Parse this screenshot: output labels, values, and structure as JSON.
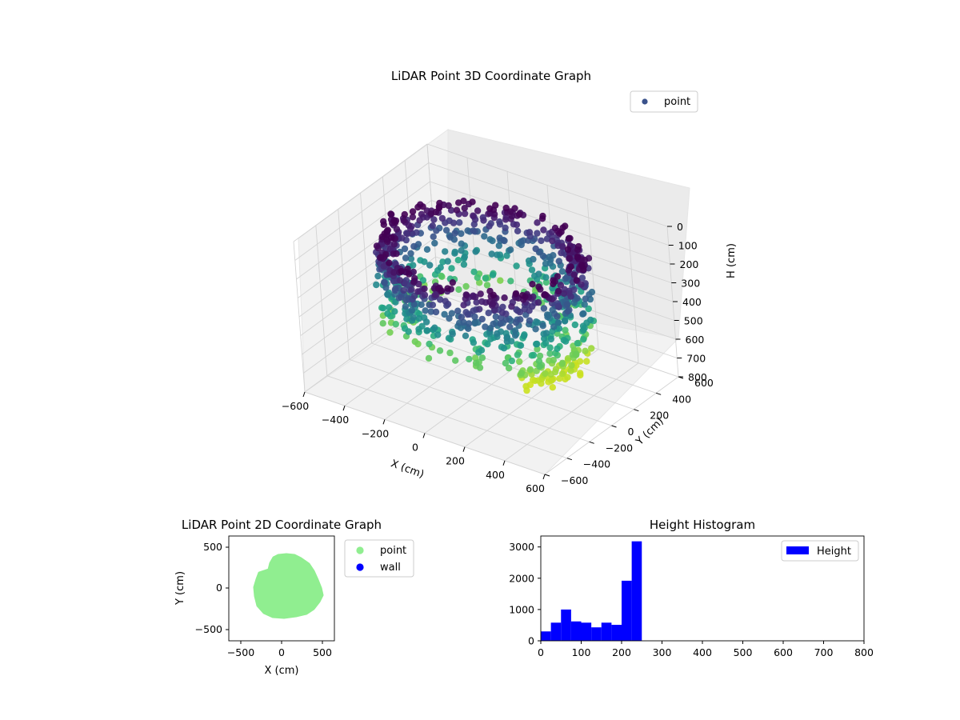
{
  "chart_data": [
    {
      "type": "scatter3d",
      "title": "LiDAR Point 3D Coordinate Graph",
      "xlabel": "X (cm)",
      "ylabel": "Y (cm)",
      "zlabel": "H (cm)",
      "xlim": [
        -600,
        600
      ],
      "ylim": [
        -600,
        600
      ],
      "zlim": [
        800,
        0
      ],
      "x_ticks": [
        "−600",
        "−400",
        "−200",
        "0",
        "200",
        "400",
        "600"
      ],
      "y_ticks": [
        "−600",
        "−400",
        "−200",
        "0",
        "200",
        "400",
        "600"
      ],
      "z_ticks": [
        "0",
        "100",
        "200",
        "300",
        "400",
        "500",
        "600",
        "700",
        "800"
      ],
      "legend": [
        {
          "label": "point",
          "color": "#3b528b"
        }
      ],
      "legend_position": "top-right",
      "colormap": "viridis",
      "grid": true,
      "data_description": "Ring-shaped point cloud, radius about 300–480 cm, heights about 80–500 cm colored by height (viridis)"
    },
    {
      "type": "scatter",
      "title": "LiDAR Point 2D Coordinate Graph",
      "xlabel": "X (cm)",
      "ylabel": "Y (cm)",
      "xlim": [
        -650,
        650
      ],
      "ylim": [
        -650,
        650
      ],
      "x_ticks": [
        "−500",
        "0",
        "500"
      ],
      "y_ticks": [
        "500",
        "0",
        "−500"
      ],
      "series": [
        {
          "name": "point",
          "color": "#90ee90"
        },
        {
          "name": "wall",
          "color": "#0000ff"
        }
      ],
      "legend_position": "outside-right"
    },
    {
      "type": "bar",
      "title": "Height Histogram",
      "xlabel": "",
      "ylabel": "",
      "xlim": [
        0,
        800
      ],
      "ylim": [
        0,
        3350
      ],
      "x_ticks": [
        "0",
        "100",
        "200",
        "300",
        "400",
        "500",
        "600",
        "700",
        "800"
      ],
      "y_ticks": [
        "0",
        "1000",
        "2000",
        "3000"
      ],
      "bin_width": 25,
      "bins": [
        {
          "x": 0,
          "value": 300
        },
        {
          "x": 25,
          "value": 580
        },
        {
          "x": 50,
          "value": 1000
        },
        {
          "x": 75,
          "value": 620
        },
        {
          "x": 100,
          "value": 580
        },
        {
          "x": 125,
          "value": 430
        },
        {
          "x": 150,
          "value": 580
        },
        {
          "x": 175,
          "value": 510
        },
        {
          "x": 200,
          "value": 1920
        },
        {
          "x": 225,
          "value": 3180
        }
      ],
      "series": [
        {
          "name": "Height",
          "color": "#0000ff"
        }
      ],
      "legend_position": "top-right"
    }
  ]
}
